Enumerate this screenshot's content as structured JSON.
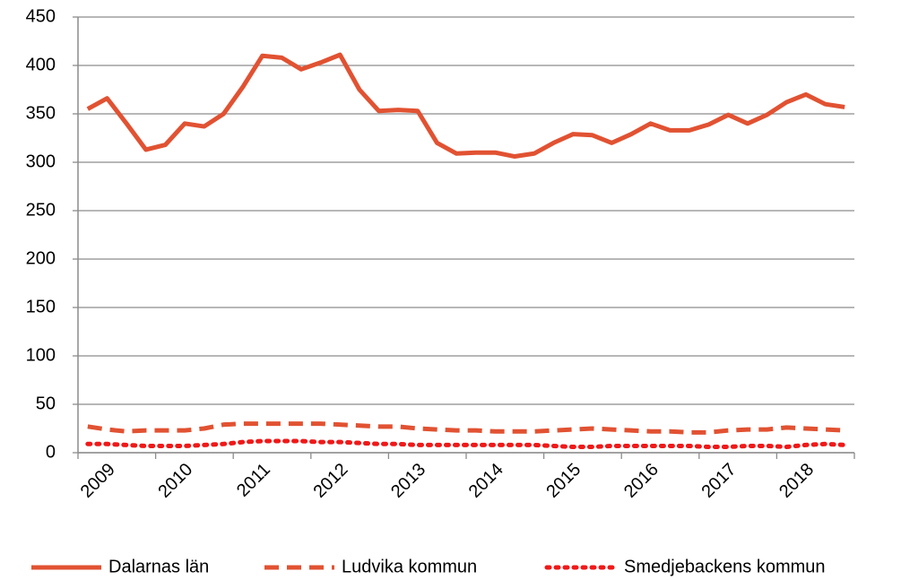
{
  "chart_data": {
    "type": "line",
    "categories": [
      null,
      "2009",
      null,
      null,
      null,
      "2010",
      null,
      null,
      null,
      "2011",
      null,
      null,
      null,
      "2012",
      null,
      null,
      null,
      "2013",
      null,
      null,
      null,
      "2014",
      null,
      null,
      null,
      "2015",
      null,
      null,
      null,
      "2016",
      null,
      null,
      null,
      "2017",
      null,
      null,
      null,
      "2018",
      null,
      null
    ],
    "series": [
      {
        "name": "Dalarnas län",
        "color": "#e15232",
        "style": "solid",
        "values": [
          355,
          366,
          340,
          313,
          318,
          340,
          337,
          350,
          378,
          410,
          408,
          396,
          403,
          411,
          375,
          353,
          354,
          353,
          320,
          309,
          310,
          310,
          306,
          309,
          320,
          329,
          328,
          320,
          329,
          340,
          333,
          333,
          339,
          349,
          340,
          349,
          362,
          370,
          360,
          357
        ]
      },
      {
        "name": "Ludvika kommun",
        "color": "#e15232",
        "style": "dashed",
        "values": [
          27,
          24,
          22,
          23,
          23,
          23,
          25,
          29,
          30,
          30,
          30,
          30,
          30,
          29,
          28,
          27,
          27,
          25,
          24,
          23,
          23,
          22,
          22,
          22,
          23,
          24,
          25,
          24,
          23,
          22,
          22,
          21,
          21,
          23,
          24,
          24,
          26,
          25,
          24,
          23
        ]
      },
      {
        "name": "Smedjebackens kommun",
        "color": "#f01818",
        "style": "dotted",
        "values": [
          9,
          9,
          8,
          7,
          7,
          7,
          8,
          9,
          11,
          12,
          12,
          12,
          11,
          11,
          10,
          9,
          9,
          8,
          8,
          8,
          8,
          8,
          8,
          8,
          7,
          6,
          6,
          7,
          7,
          7,
          7,
          7,
          6,
          6,
          7,
          7,
          6,
          8,
          9,
          8
        ]
      }
    ],
    "ylim": [
      0,
      450
    ],
    "yticks": [
      0,
      50,
      100,
      150,
      200,
      250,
      300,
      350,
      400,
      450
    ],
    "grid": true,
    "legend": "bottom"
  }
}
